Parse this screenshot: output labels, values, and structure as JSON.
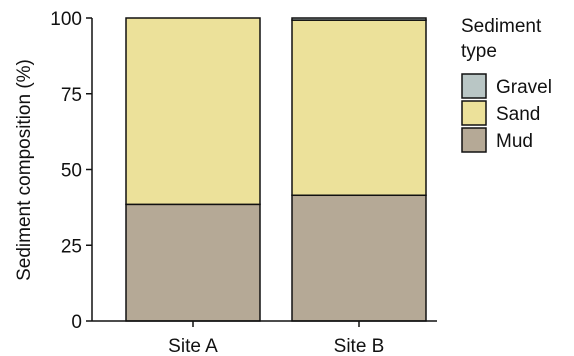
{
  "chart_data": {
    "type": "bar",
    "stacked": true,
    "categories": [
      "Site A",
      "Site B"
    ],
    "series": [
      {
        "name": "Mud",
        "values": [
          38.5,
          41.5
        ],
        "color": "#b5a996"
      },
      {
        "name": "Sand",
        "values": [
          61.5,
          57.8
        ],
        "color": "#ece19a"
      },
      {
        "name": "Gravel",
        "values": [
          0,
          0.7
        ],
        "color": "#b9c6c5"
      }
    ],
    "ylabel": "Sediment composition (%)",
    "xlabel": "",
    "ylim": [
      0,
      100
    ],
    "yticks": [
      0,
      25,
      50,
      75,
      100
    ],
    "grid": false,
    "legend": {
      "title": "Sediment type",
      "placement": "right",
      "order": [
        "Gravel",
        "Sand",
        "Mud"
      ]
    }
  }
}
